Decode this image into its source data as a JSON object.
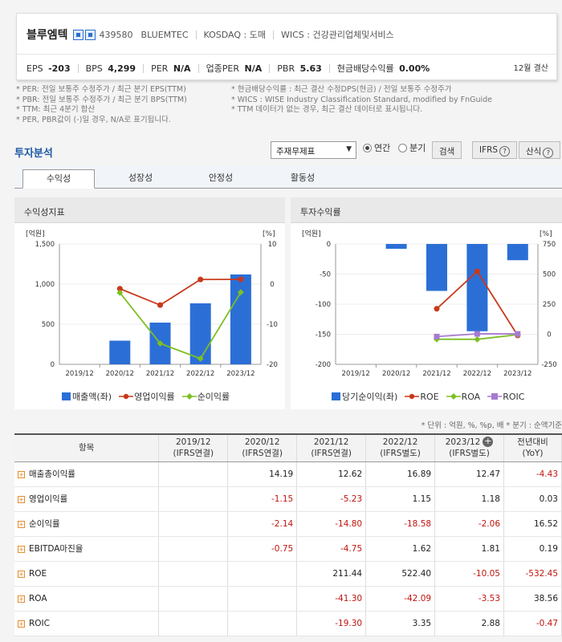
{
  "header": {
    "name": "블루엠텍",
    "code": "439580",
    "eng_name": "BLUEMTEC",
    "market": "KOSDAQ : 도매",
    "wics": "WICS : 건강관리업체및서비스",
    "metrics": [
      {
        "label": "EPS",
        "value": "-203"
      },
      {
        "label": "BPS",
        "value": "4,299"
      },
      {
        "label": "PER",
        "value": "N/A"
      },
      {
        "label": "업종PER",
        "value": "N/A"
      },
      {
        "label": "PBR",
        "value": "5.63"
      },
      {
        "label": "현금배당수익률",
        "value": "0.00%"
      }
    ],
    "settlement": "12월 결산"
  },
  "notes": {
    "left": [
      "* PER: 전일 보통주 수정주가 / 최근 분기 EPS(TTM)",
      "* PBR: 전일 보통주 수정주가 / 최근 분기 BPS(TTM)",
      "* TTM: 최근 4분기 합산",
      "* PER, PBR값이 (-)일 경우, N/A로 표기됩니다."
    ],
    "right": [
      "* 현금배당수익률 : 최근 결산 수정DPS(현금) / 전일 보통주 수정주가",
      "* WICS : WISE Industry Classification Standard, modified by FnGuide",
      "* TTM 데이터가 없는 경우, 최근 결산 데이터로 표시됩니다."
    ]
  },
  "analysis": {
    "title": "투자분석",
    "select_value": "주재무제표",
    "radio_annual": "연간",
    "radio_quarter": "분기",
    "search_button": "검색",
    "ifrs_button": "IFRS",
    "formula_button": "산식",
    "tabs": [
      "수익성",
      "성장성",
      "안정성",
      "활동성"
    ]
  },
  "colors": {
    "bar": "#2b6fd6",
    "red": "#c8391b",
    "green": "#7dbf23",
    "purple": "#a77ad1"
  },
  "chart_data": [
    {
      "type": "bar",
      "title": "수익성지표",
      "categories": [
        "2019/12",
        "2020/12",
        "2021/12",
        "2022/12",
        "2023/12"
      ],
      "left_axis_label": "[억원]",
      "right_axis_label": "[%]",
      "left_ticks": [
        "1,500",
        "1,000",
        "500",
        "0"
      ],
      "right_ticks": [
        "10",
        "0",
        "-10",
        "-20"
      ],
      "ylim_left": [
        0,
        1500
      ],
      "ylim_right": [
        -20,
        10
      ],
      "bars": {
        "name": "매출액(좌)",
        "values": [
          null,
          295,
          520,
          760,
          1120
        ]
      },
      "series": [
        {
          "name": "영업이익률",
          "values": [
            null,
            -1.15,
            -5.23,
            1.15,
            1.18
          ]
        },
        {
          "name": "순이익률",
          "values": [
            null,
            -2.14,
            -14.8,
            -18.58,
            -2.06
          ]
        }
      ]
    },
    {
      "type": "bar",
      "title": "투자수익률",
      "categories": [
        "2019/12",
        "2020/12",
        "2021/12",
        "2022/12",
        "2023/12"
      ],
      "left_axis_label": "[억원]",
      "right_axis_label": "[%]",
      "left_ticks": [
        "0",
        "-50",
        "-100",
        "-150",
        "-200"
      ],
      "right_ticks": [
        "750",
        "500",
        "250",
        "0",
        "-250"
      ],
      "ylim_left": [
        -200,
        0
      ],
      "ylim_right": [
        -250,
        750
      ],
      "bars": {
        "name": "당기순이익(좌)",
        "values": [
          null,
          -8,
          -78,
          -145,
          -27
        ]
      },
      "series": [
        {
          "name": "ROE",
          "values": [
            null,
            null,
            211.44,
            522.4,
            -10.05
          ]
        },
        {
          "name": "ROA",
          "values": [
            null,
            null,
            -41.3,
            -42.09,
            -3.53
          ]
        },
        {
          "name": "ROIC",
          "values": [
            null,
            null,
            -19.3,
            3.35,
            2.88
          ]
        }
      ]
    }
  ],
  "unit_note": "* 단위 : 억원, %, %p, 배      * 분기 : 순액기준",
  "table": {
    "headers": [
      {
        "line1": "항목",
        "line2": ""
      },
      {
        "line1": "2019/12",
        "line2": "(IFRS연결)"
      },
      {
        "line1": "2020/12",
        "line2": "(IFRS연결)"
      },
      {
        "line1": "2021/12",
        "line2": "(IFRS연결)"
      },
      {
        "line1": "2022/12",
        "line2": "(IFRS별도)"
      },
      {
        "line1": "2023/12",
        "line2": "(IFRS별도)"
      },
      {
        "line1": "전년대비",
        "line2": "(YoY)"
      }
    ],
    "rows": [
      {
        "label": "매출총이익률",
        "values": [
          "",
          "14.19",
          "12.62",
          "16.89",
          "12.47",
          "-4.43"
        ]
      },
      {
        "label": "영업이익률",
        "values": [
          "",
          "-1.15",
          "-5.23",
          "1.15",
          "1.18",
          "0.03"
        ]
      },
      {
        "label": "순이익률",
        "values": [
          "",
          "-2.14",
          "-14.80",
          "-18.58",
          "-2.06",
          "16.52"
        ]
      },
      {
        "label": "EBITDA마진율",
        "values": [
          "",
          "-0.75",
          "-4.75",
          "1.62",
          "1.81",
          "0.19"
        ]
      },
      {
        "label": "ROE",
        "values": [
          "",
          "",
          "211.44",
          "522.40",
          "-10.05",
          "-532.45"
        ]
      },
      {
        "label": "ROA",
        "values": [
          "",
          "",
          "-41.30",
          "-42.09",
          "-3.53",
          "38.56"
        ]
      },
      {
        "label": "ROIC",
        "values": [
          "",
          "",
          "-19.30",
          "3.35",
          "2.88",
          "-0.47"
        ]
      }
    ]
  }
}
